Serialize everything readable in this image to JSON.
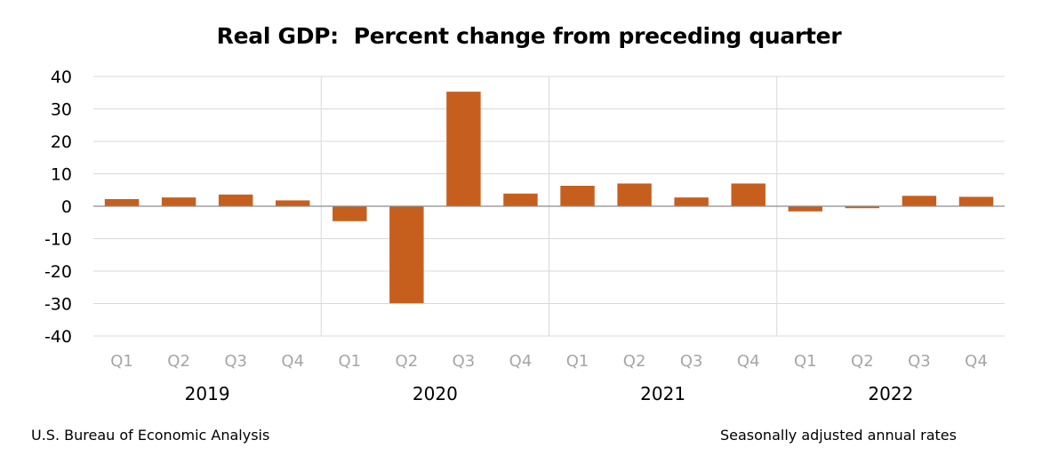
{
  "chart_data": {
    "type": "bar",
    "title": "Real GDP:  Percent change from preceding quarter",
    "quarters": [
      "Q1",
      "Q2",
      "Q3",
      "Q4",
      "Q1",
      "Q2",
      "Q3",
      "Q4",
      "Q1",
      "Q2",
      "Q3",
      "Q4",
      "Q1",
      "Q2",
      "Q3",
      "Q4"
    ],
    "years": [
      "2019",
      "2020",
      "2021",
      "2022"
    ],
    "values": [
      2.2,
      2.7,
      3.6,
      1.8,
      -4.6,
      -29.9,
      35.3,
      3.9,
      6.3,
      7.0,
      2.7,
      7.0,
      -1.6,
      -0.6,
      3.2,
      2.9
    ],
    "ylim": [
      -40,
      40
    ],
    "yticks": [
      40,
      30,
      20,
      10,
      0,
      -10,
      -20,
      -30,
      -40
    ],
    "grid": true,
    "bar_color": "#c65f1e",
    "xlabel": "",
    "ylabel": ""
  },
  "footer": {
    "source": "U.S. Bureau of Economic Analysis",
    "note": "Seasonally adjusted annual rates"
  }
}
